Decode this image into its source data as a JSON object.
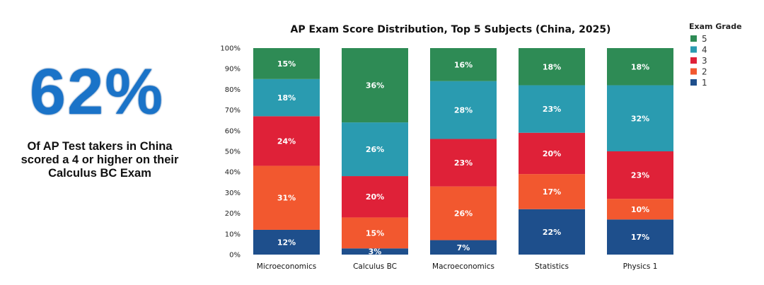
{
  "callout": {
    "stat": "62%",
    "text": "Of AP Test takers in China scored a 4 or higher on their Calculus BC Exam"
  },
  "chart_data": {
    "type": "bar",
    "stacked": true,
    "title": "AP Exam Score Distribution, Top 5 Subjects (China, 2025)",
    "xlabel": "",
    "ylabel": "",
    "ylim": [
      0,
      100
    ],
    "yticks": [
      "0%",
      "10%",
      "20%",
      "30%",
      "40%",
      "50%",
      "60%",
      "70%",
      "80%",
      "90%",
      "100%"
    ],
    "categories": [
      "Microeconomics",
      "Calculus BC",
      "Macroeconomics",
      "Statistics",
      "Physics 1"
    ],
    "legend": {
      "title": "Exam Grade",
      "placement": "top-right"
    },
    "series": [
      {
        "name": "1",
        "color": "#1e4f8c",
        "values": [
          12,
          3,
          7,
          22,
          17
        ]
      },
      {
        "name": "2",
        "color": "#f2582f",
        "values": [
          31,
          15,
          26,
          17,
          10
        ]
      },
      {
        "name": "3",
        "color": "#df2138",
        "values": [
          24,
          20,
          23,
          20,
          23
        ]
      },
      {
        "name": "4",
        "color": "#2a9bb0",
        "values": [
          18,
          26,
          28,
          23,
          32
        ]
      },
      {
        "name": "5",
        "color": "#2e8b55",
        "values": [
          15,
          36,
          16,
          18,
          18
        ]
      }
    ]
  }
}
